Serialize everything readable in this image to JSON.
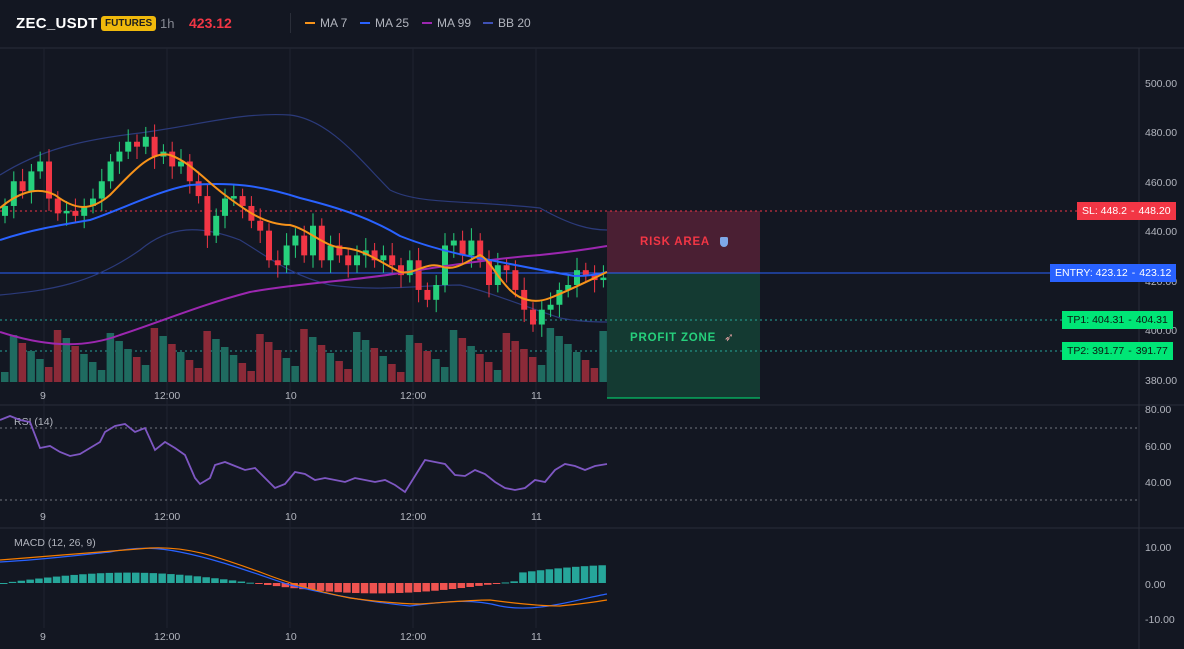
{
  "header": {
    "symbol": "ZEC_USDT",
    "badge": "FUTURES",
    "timeframe": "1h",
    "last_price": "423.12",
    "indicators": [
      {
        "label": "MA 7",
        "color": "#f7931a"
      },
      {
        "label": "MA 25",
        "color": "#2962ff"
      },
      {
        "label": "MA 99",
        "color": "#9c27b0"
      },
      {
        "label": "BB 20",
        "color": "#3f51b5"
      }
    ]
  },
  "price_axis": [
    "500.00",
    "480.00",
    "460.00",
    "440.00",
    "420.00",
    "400.00",
    "380.00"
  ],
  "time_labels": [
    "9",
    "12:00",
    "10",
    "12:00",
    "11"
  ],
  "levels": {
    "sl": {
      "label": "SL: 448.2",
      "value": "448.20",
      "color": "#f23645"
    },
    "entry": {
      "label": "ENTRY: 423.12",
      "value": "423.12",
      "color": "#2962ff"
    },
    "tp1": {
      "label": "TP1: 404.31",
      "value": "404.31",
      "color": "#00e676"
    },
    "tp2": {
      "label": "TP2: 391.77",
      "value": "391.77",
      "color": "#00e676"
    }
  },
  "zones": {
    "risk": {
      "label": "RISK AREA",
      "icon": "shield-icon"
    },
    "profit": {
      "label": "PROFIT ZONE",
      "icon": "rocket-icon"
    }
  },
  "rsi": {
    "title": "RSI (14)",
    "axis": [
      "80.00",
      "60.00",
      "40.00"
    ]
  },
  "macd": {
    "title": "MACD (12, 26, 9)",
    "axis": [
      "10.00",
      "0.00",
      "-10.00"
    ]
  }
}
